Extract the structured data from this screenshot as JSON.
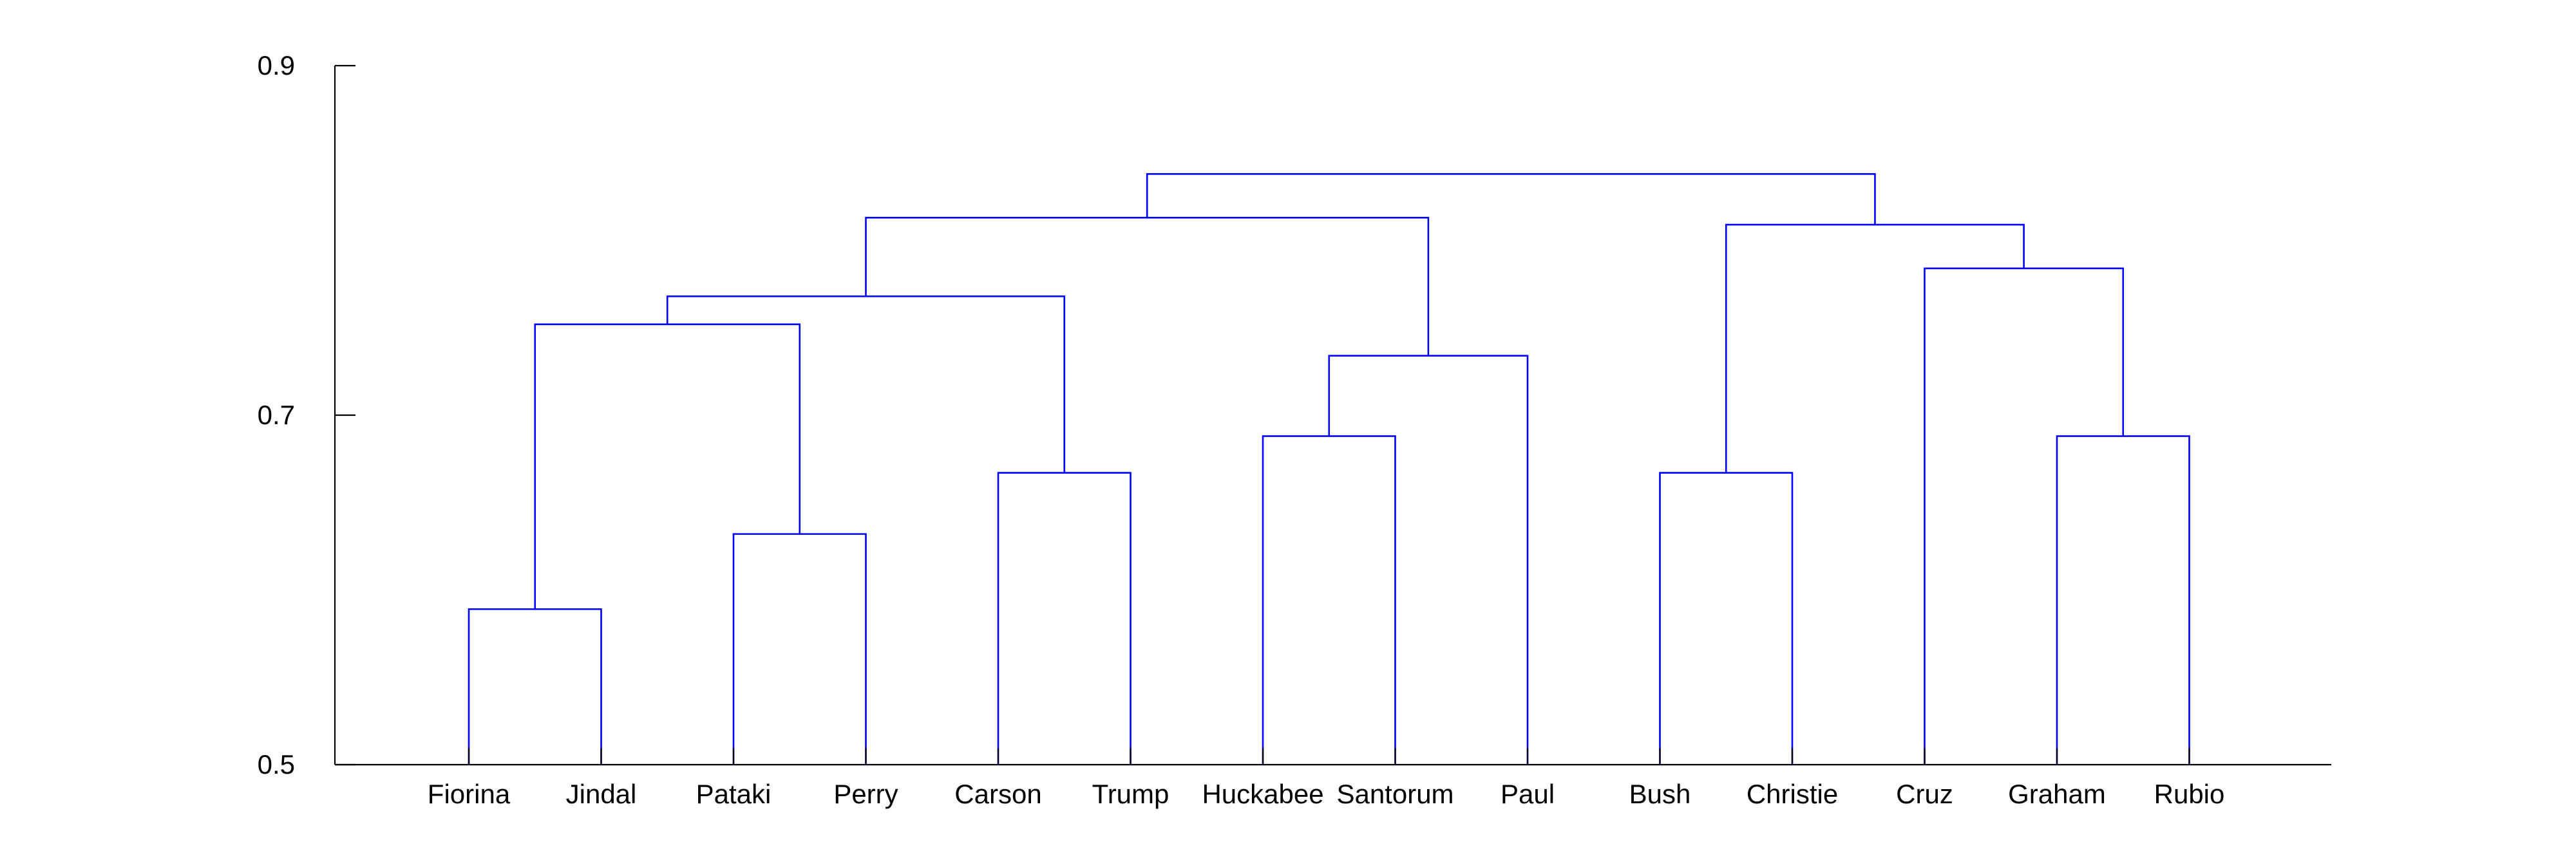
{
  "chart_data": {
    "type": "dendrogram",
    "ylim": [
      0.5,
      0.9
    ],
    "yticks": [
      "0.9",
      "0.7",
      "0.5"
    ],
    "ytick_values": [
      0.9,
      0.7,
      0.5
    ],
    "leaves": [
      "Fiorina",
      "Jindal",
      "Pataki",
      "Perry",
      "Carson",
      "Trump",
      "Huckabee",
      "Santorum",
      "Paul",
      "Bush",
      "Christie",
      "Cruz",
      "Graham",
      "Rubio"
    ],
    "merges": [
      {
        "id": "m1",
        "left": "Fiorina",
        "right": "Jindal",
        "height": 0.589
      },
      {
        "id": "m2",
        "left": "Pataki",
        "right": "Perry",
        "height": 0.632
      },
      {
        "id": "m3",
        "left": "Carson",
        "right": "Trump",
        "height": 0.667
      },
      {
        "id": "m4",
        "left": "Huckabee",
        "right": "Santorum",
        "height": 0.688
      },
      {
        "id": "m5",
        "left": "Bush",
        "right": "Christie",
        "height": 0.667
      },
      {
        "id": "m6",
        "left": "Graham",
        "right": "Rubio",
        "height": 0.688
      },
      {
        "id": "m7",
        "left": "m4",
        "right": "Paul",
        "height": 0.734
      },
      {
        "id": "m8",
        "left": "m1",
        "right": "m2",
        "height": 0.752
      },
      {
        "id": "m9",
        "left": "m8",
        "right": "m3",
        "height": 0.768
      },
      {
        "id": "m10",
        "left": "Cruz",
        "right": "m6",
        "height": 0.784
      },
      {
        "id": "m11",
        "left": "m5",
        "right": "m10",
        "height": 0.809
      },
      {
        "id": "m12",
        "left": "m9",
        "right": "m7",
        "height": 0.813
      },
      {
        "id": "m13",
        "left": "m12",
        "right": "m11",
        "height": 0.838
      }
    ],
    "colors": {
      "links": "#0000ff",
      "axis": "#000000"
    }
  }
}
